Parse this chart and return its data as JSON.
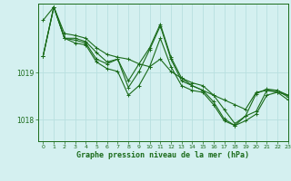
{
  "title": "Graphe pression niveau de la mer (hPa)",
  "background_color": "#d4f0f0",
  "grid_color": "#b8e0e0",
  "line_color": "#1a6b1a",
  "xlim": [
    -0.5,
    23
  ],
  "ylim": [
    1017.55,
    1020.45
  ],
  "yticks": [
    1018,
    1019
  ],
  "xticks": [
    0,
    1,
    2,
    3,
    4,
    5,
    6,
    7,
    8,
    9,
    10,
    11,
    12,
    13,
    14,
    15,
    16,
    17,
    18,
    19,
    20,
    21,
    22,
    23
  ],
  "series": [
    [
      1020.1,
      1020.38,
      1019.82,
      1019.78,
      1019.72,
      1019.52,
      1019.38,
      1019.32,
      1019.28,
      1019.18,
      1019.12,
      1019.28,
      1019.02,
      1018.88,
      1018.72,
      1018.62,
      1018.52,
      1018.42,
      1018.32,
      1018.22,
      1018.58,
      1018.62,
      1018.58,
      1018.52
    ],
    [
      1019.35,
      1020.38,
      1019.72,
      1019.72,
      1019.65,
      1019.42,
      1019.22,
      1019.28,
      1018.82,
      1019.18,
      1019.52,
      1020.02,
      1019.32,
      1018.88,
      1018.78,
      1018.72,
      1018.52,
      1018.22,
      1017.92,
      1018.08,
      1018.55,
      1018.65,
      1018.62,
      1018.52
    ],
    [
      1019.35,
      1020.38,
      1019.72,
      1019.68,
      1019.62,
      1019.28,
      1019.18,
      1019.28,
      1018.68,
      1019.02,
      1019.48,
      1019.98,
      1019.28,
      1018.82,
      1018.72,
      1018.62,
      1018.38,
      1018.02,
      1017.88,
      1018.08,
      1018.18,
      1018.62,
      1018.62,
      1018.48
    ],
    [
      1019.35,
      1020.38,
      1019.72,
      1019.62,
      1019.58,
      1019.22,
      1019.08,
      1019.02,
      1018.52,
      1018.72,
      1019.12,
      1019.72,
      1019.12,
      1018.72,
      1018.62,
      1018.58,
      1018.32,
      1017.98,
      1017.88,
      1017.98,
      1018.12,
      1018.52,
      1018.58,
      1018.42
    ]
  ]
}
